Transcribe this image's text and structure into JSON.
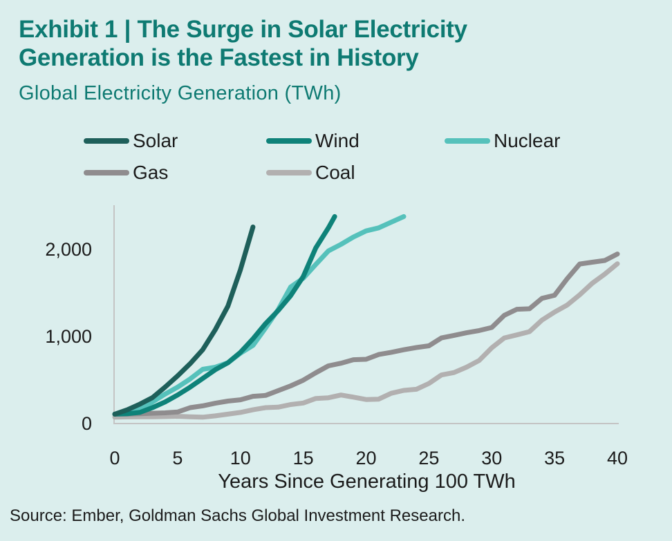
{
  "header": {
    "title_line1": "Exhibit 1 | The Surge in Solar Electricity",
    "title_line2": "Generation is the Fastest in History",
    "subtitle": "Global Electricity Generation (TWh)"
  },
  "colors": {
    "background": "#dbeeed",
    "title": "#0e7a72",
    "axis": "#c4c4c4"
  },
  "footer": {
    "source": "Source: Ember, Goldman Sachs Global Investment Research."
  },
  "chart_data": {
    "type": "line",
    "title": "Global Electricity Generation (TWh)",
    "xlabel": "Years Since Generating 100 TWh",
    "ylabel": "",
    "xlim": [
      0,
      40
    ],
    "ylim": [
      0,
      2400
    ],
    "xticks": [
      0,
      5,
      10,
      15,
      20,
      25,
      30,
      35,
      40
    ],
    "xtick_labels": [
      "0",
      "5",
      "10",
      "15",
      "20",
      "25",
      "30",
      "35",
      "40"
    ],
    "yticks": [
      0,
      1000,
      2000
    ],
    "ytick_labels": [
      "0",
      "1,000",
      "2,000"
    ],
    "grid": false,
    "legend_position": "top",
    "series": [
      {
        "name": "Solar",
        "color": "#1e5f5a",
        "x": [
          0,
          1,
          2,
          3,
          4,
          5,
          6,
          7,
          8,
          9,
          10,
          11
        ],
        "y": [
          100,
          150,
          215,
          290,
          410,
          540,
          680,
          840,
          1070,
          1340,
          1760,
          2250
        ]
      },
      {
        "name": "Wind",
        "color": "#0e8279",
        "x": [
          0,
          1,
          2,
          3,
          4,
          5,
          6,
          7,
          8,
          9,
          10,
          11,
          12,
          13,
          14,
          15,
          16,
          17,
          17.5
        ],
        "y": [
          100,
          105,
          120,
          175,
          240,
          320,
          410,
          510,
          610,
          690,
          810,
          965,
          1140,
          1290,
          1460,
          1680,
          2010,
          2240,
          2370
        ]
      },
      {
        "name": "Nuclear",
        "color": "#55c1bb",
        "x": [
          0,
          1,
          2,
          3,
          4,
          5,
          6,
          7,
          8,
          9,
          10,
          11,
          12,
          13,
          14,
          15,
          16,
          17,
          18,
          19,
          20,
          21,
          22,
          23
        ],
        "y": [
          100,
          120,
          155,
          240,
          330,
          410,
          505,
          615,
          640,
          690,
          800,
          890,
          1090,
          1300,
          1560,
          1660,
          1820,
          1975,
          2050,
          2135,
          2205,
          2240,
          2305,
          2370
        ]
      },
      {
        "name": "Gas",
        "color": "#8f8c8e",
        "x": [
          0,
          1,
          2,
          3,
          4,
          5,
          6,
          7,
          8,
          9,
          10,
          11,
          12,
          13,
          14,
          15,
          16,
          17,
          18,
          19,
          20,
          21,
          22,
          23,
          24,
          25,
          26,
          27,
          28,
          29,
          30,
          31,
          32,
          33,
          34,
          35,
          36,
          37,
          38,
          39,
          40
        ],
        "y": [
          100,
          100,
          105,
          110,
          115,
          125,
          175,
          195,
          225,
          250,
          265,
          305,
          315,
          370,
          425,
          490,
          575,
          655,
          685,
          725,
          730,
          785,
          810,
          840,
          865,
          885,
          975,
          1005,
          1035,
          1060,
          1095,
          1235,
          1305,
          1310,
          1430,
          1465,
          1655,
          1825,
          1845,
          1865,
          1940
        ]
      },
      {
        "name": "Coal",
        "color": "#b2b0b0",
        "x": [
          0,
          1,
          2,
          3,
          4,
          5,
          6,
          7,
          8,
          9,
          10,
          11,
          12,
          13,
          14,
          15,
          16,
          17,
          18,
          19,
          20,
          21,
          22,
          23,
          24,
          25,
          26,
          27,
          28,
          29,
          30,
          31,
          32,
          33,
          34,
          35,
          36,
          37,
          38,
          39,
          40
        ],
        "y": [
          65,
          68,
          70,
          70,
          72,
          75,
          70,
          65,
          80,
          100,
          120,
          150,
          175,
          180,
          210,
          228,
          280,
          288,
          320,
          295,
          268,
          272,
          340,
          373,
          386,
          452,
          550,
          578,
          640,
          717,
          862,
          975,
          1010,
          1048,
          1180,
          1272,
          1352,
          1471,
          1603,
          1709,
          1828
        ]
      }
    ]
  }
}
